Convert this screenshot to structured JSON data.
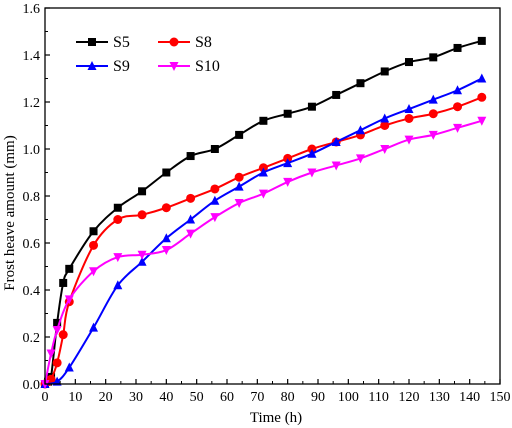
{
  "chart_data": {
    "type": "line",
    "title": "",
    "xlabel": "Time (h)",
    "ylabel": "Frost heave amount (mm)",
    "xlim": [
      0,
      150
    ],
    "ylim": [
      0.0,
      1.6
    ],
    "xticks": [
      "0",
      "10",
      "20",
      "30",
      "40",
      "50",
      "60",
      "70",
      "80",
      "90",
      "100",
      "110",
      "120",
      "130",
      "140",
      "150"
    ],
    "yticks": [
      "0.0",
      "0.2",
      "0.4",
      "0.6",
      "0.8",
      "1.0",
      "1.2",
      "1.4",
      "1.6"
    ],
    "grid": false,
    "legend": "top-left",
    "series": [
      {
        "name": "S5",
        "color": "#000000",
        "marker": "square",
        "points": [
          [
            0,
            0
          ],
          [
            1,
            0.01
          ],
          [
            2,
            0.03
          ],
          [
            4,
            0.26
          ],
          [
            6,
            0.43
          ],
          [
            8,
            0.49
          ],
          [
            16,
            0.65
          ],
          [
            24,
            0.75
          ],
          [
            32,
            0.82
          ],
          [
            40,
            0.9
          ],
          [
            48,
            0.97
          ],
          [
            56,
            1.0
          ],
          [
            64,
            1.06
          ],
          [
            72,
            1.12
          ],
          [
            80,
            1.15
          ],
          [
            88,
            1.18
          ],
          [
            96,
            1.23
          ],
          [
            104,
            1.28
          ],
          [
            112,
            1.33
          ],
          [
            120,
            1.37
          ],
          [
            128,
            1.39
          ],
          [
            136,
            1.43
          ],
          [
            144,
            1.46
          ]
        ]
      },
      {
        "name": "S8",
        "color": "#ff0000",
        "marker": "circle",
        "points": [
          [
            0,
            0
          ],
          [
            1,
            0.01
          ],
          [
            2,
            0.02
          ],
          [
            4,
            0.09
          ],
          [
            6,
            0.21
          ],
          [
            8,
            0.35
          ],
          [
            16,
            0.59
          ],
          [
            24,
            0.7
          ],
          [
            32,
            0.72
          ],
          [
            40,
            0.75
          ],
          [
            48,
            0.79
          ],
          [
            56,
            0.83
          ],
          [
            64,
            0.88
          ],
          [
            72,
            0.92
          ],
          [
            80,
            0.96
          ],
          [
            88,
            1.0
          ],
          [
            96,
            1.03
          ],
          [
            104,
            1.06
          ],
          [
            112,
            1.1
          ],
          [
            120,
            1.13
          ],
          [
            128,
            1.15
          ],
          [
            136,
            1.18
          ],
          [
            144,
            1.22
          ]
        ]
      },
      {
        "name": "S9",
        "color": "#0000ff",
        "marker": "triangle-up",
        "points": [
          [
            0,
            0
          ],
          [
            4,
            0.01
          ],
          [
            8,
            0.07
          ],
          [
            16,
            0.24
          ],
          [
            24,
            0.42
          ],
          [
            32,
            0.52
          ],
          [
            40,
            0.62
          ],
          [
            48,
            0.7
          ],
          [
            56,
            0.78
          ],
          [
            64,
            0.84
          ],
          [
            72,
            0.9
          ],
          [
            80,
            0.94
          ],
          [
            88,
            0.98
          ],
          [
            96,
            1.03
          ],
          [
            104,
            1.08
          ],
          [
            112,
            1.13
          ],
          [
            120,
            1.17
          ],
          [
            128,
            1.21
          ],
          [
            136,
            1.25
          ],
          [
            144,
            1.3
          ]
        ]
      },
      {
        "name": "S10",
        "color": "#ff00ff",
        "marker": "triangle-down",
        "points": [
          [
            0,
            0
          ],
          [
            2,
            0.13
          ],
          [
            4,
            0.23
          ],
          [
            8,
            0.36
          ],
          [
            16,
            0.48
          ],
          [
            24,
            0.54
          ],
          [
            32,
            0.55
          ],
          [
            40,
            0.57
          ],
          [
            48,
            0.64
          ],
          [
            56,
            0.71
          ],
          [
            64,
            0.77
          ],
          [
            72,
            0.81
          ],
          [
            80,
            0.86
          ],
          [
            88,
            0.9
          ],
          [
            96,
            0.93
          ],
          [
            104,
            0.96
          ],
          [
            112,
            1.0
          ],
          [
            120,
            1.04
          ],
          [
            128,
            1.06
          ],
          [
            136,
            1.09
          ],
          [
            144,
            1.12
          ]
        ]
      }
    ]
  }
}
